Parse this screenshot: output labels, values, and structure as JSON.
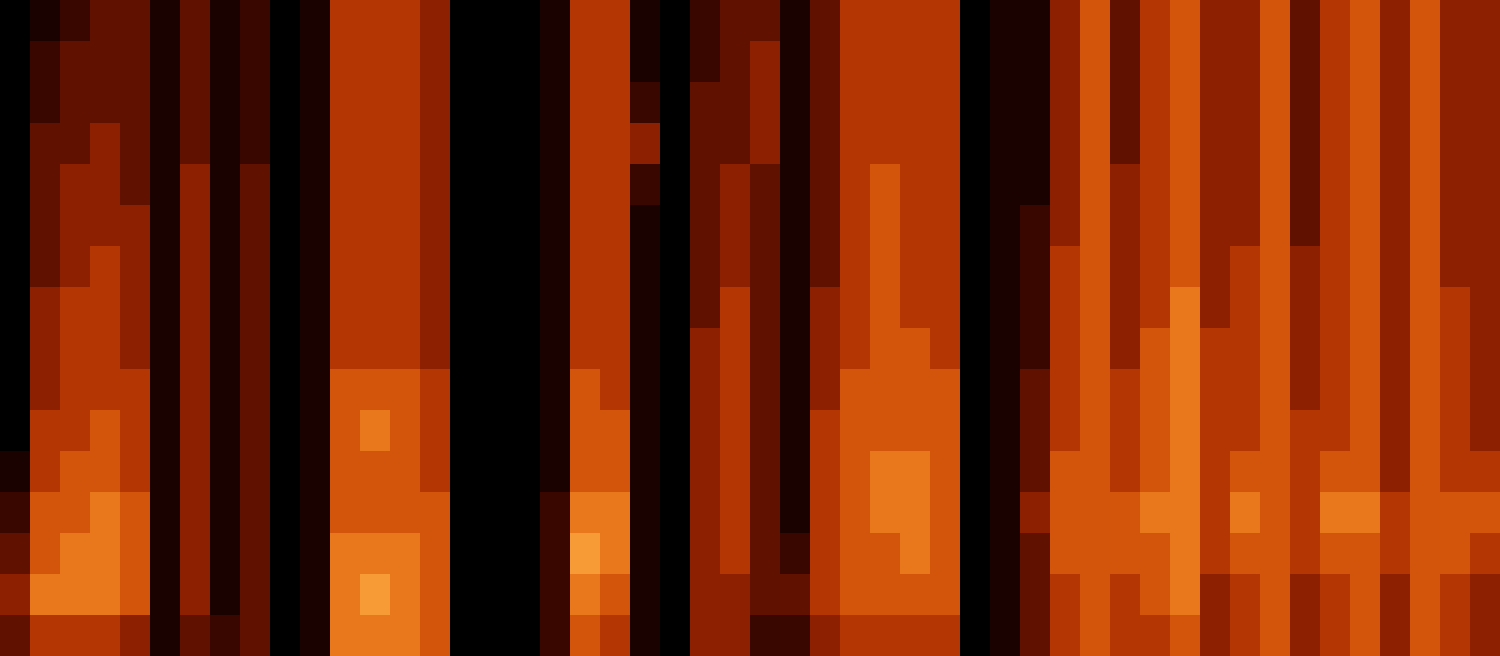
{
  "chart_data": {
    "type": "heatmap",
    "tick_labels": false,
    "zlim": [
      0,
      10
    ],
    "cells": [
      [
        0,
        0,
        0,
        0,
        0,
        0,
        0,
        0,
        0,
        0,
        0,
        1,
        2,
        3,
        4,
        3
      ],
      [
        1,
        2,
        2,
        3,
        3,
        3,
        3,
        4,
        4,
        4,
        5,
        5,
        6,
        6,
        7,
        5
      ],
      [
        2,
        3,
        3,
        3,
        4,
        4,
        4,
        5,
        5,
        5,
        5,
        6,
        6,
        7,
        7,
        5
      ],
      [
        3,
        3,
        3,
        4,
        4,
        4,
        5,
        5,
        5,
        5,
        6,
        6,
        7,
        7,
        7,
        5
      ],
      [
        3,
        3,
        3,
        3,
        3,
        4,
        4,
        4,
        4,
        5,
        5,
        5,
        6,
        6,
        6,
        4
      ],
      [
        1,
        1,
        1,
        1,
        1,
        1,
        1,
        1,
        1,
        1,
        1,
        1,
        1,
        1,
        1,
        1
      ],
      [
        3,
        3,
        3,
        3,
        4,
        4,
        4,
        4,
        4,
        4,
        4,
        4,
        4,
        4,
        4,
        3
      ],
      [
        1,
        1,
        1,
        1,
        1,
        1,
        1,
        1,
        1,
        1,
        1,
        1,
        1,
        1,
        1,
        2
      ],
      [
        2,
        2,
        2,
        2,
        3,
        3,
        3,
        3,
        3,
        3,
        3,
        3,
        3,
        3,
        3,
        3
      ],
      [
        0,
        0,
        0,
        0,
        0,
        0,
        0,
        0,
        0,
        0,
        0,
        0,
        0,
        0,
        0,
        0
      ],
      [
        1,
        1,
        1,
        1,
        1,
        1,
        1,
        1,
        1,
        1,
        1,
        1,
        1,
        1,
        1,
        1
      ],
      [
        5,
        5,
        5,
        5,
        5,
        5,
        5,
        5,
        5,
        6,
        6,
        6,
        6,
        7,
        7,
        7
      ],
      [
        5,
        5,
        5,
        5,
        5,
        5,
        5,
        5,
        5,
        6,
        7,
        6,
        6,
        7,
        8,
        7
      ],
      [
        5,
        5,
        5,
        5,
        5,
        5,
        5,
        5,
        5,
        6,
        6,
        6,
        6,
        7,
        7,
        7
      ],
      [
        4,
        4,
        4,
        4,
        4,
        4,
        4,
        4,
        4,
        5,
        5,
        5,
        6,
        6,
        6,
        6
      ],
      [
        0,
        0,
        0,
        0,
        0,
        0,
        0,
        0,
        0,
        0,
        0,
        0,
        0,
        0,
        0,
        0
      ],
      [
        0,
        0,
        0,
        0,
        0,
        0,
        0,
        0,
        0,
        0,
        0,
        0,
        0,
        0,
        0,
        0
      ],
      [
        0,
        0,
        0,
        0,
        0,
        0,
        0,
        0,
        0,
        0,
        0,
        0,
        0,
        0,
        0,
        0
      ],
      [
        1,
        1,
        1,
        1,
        1,
        1,
        1,
        1,
        1,
        1,
        1,
        1,
        2,
        2,
        2,
        2
      ],
      [
        5,
        5,
        5,
        5,
        5,
        5,
        5,
        5,
        5,
        6,
        6,
        6,
        7,
        8,
        7,
        6
      ],
      [
        5,
        5,
        5,
        5,
        5,
        5,
        5,
        5,
        5,
        5,
        6,
        6,
        7,
        7,
        6,
        5
      ],
      [
        1,
        1,
        2,
        4,
        2,
        1,
        1,
        1,
        1,
        1,
        1,
        1,
        1,
        1,
        1,
        1
      ],
      [
        0,
        0,
        0,
        0,
        0,
        0,
        0,
        0,
        0,
        0,
        0,
        0,
        0,
        0,
        0,
        0
      ],
      [
        2,
        2,
        3,
        3,
        3,
        3,
        3,
        3,
        4,
        4,
        4,
        4,
        4,
        4,
        4,
        4
      ],
      [
        3,
        3,
        3,
        3,
        4,
        4,
        4,
        5,
        5,
        5,
        5,
        5,
        5,
        5,
        4,
        4
      ],
      [
        3,
        4,
        4,
        4,
        3,
        3,
        3,
        3,
        3,
        3,
        3,
        3,
        3,
        3,
        3,
        2
      ],
      [
        1,
        1,
        1,
        1,
        1,
        1,
        1,
        1,
        1,
        1,
        1,
        1,
        1,
        2,
        3,
        2
      ],
      [
        3,
        3,
        3,
        3,
        3,
        3,
        3,
        4,
        4,
        4,
        5,
        5,
        5,
        5,
        5,
        4
      ],
      [
        5,
        5,
        5,
        5,
        5,
        5,
        5,
        5,
        5,
        6,
        6,
        6,
        6,
        6,
        6,
        5
      ],
      [
        5,
        5,
        5,
        5,
        6,
        6,
        6,
        6,
        6,
        6,
        6,
        7,
        7,
        6,
        6,
        5
      ],
      [
        5,
        5,
        5,
        5,
        5,
        5,
        5,
        5,
        6,
        6,
        6,
        7,
        7,
        7,
        6,
        5
      ],
      [
        5,
        5,
        5,
        5,
        5,
        5,
        5,
        5,
        5,
        6,
        6,
        6,
        6,
        6,
        6,
        5
      ],
      [
        0,
        0,
        0,
        0,
        0,
        0,
        0,
        0,
        0,
        0,
        0,
        0,
        0,
        0,
        0,
        0
      ],
      [
        1,
        1,
        1,
        1,
        1,
        1,
        1,
        1,
        1,
        1,
        1,
        1,
        1,
        1,
        1,
        1
      ],
      [
        1,
        1,
        1,
        1,
        1,
        2,
        2,
        2,
        2,
        3,
        3,
        3,
        4,
        3,
        3,
        3
      ],
      [
        4,
        4,
        4,
        4,
        4,
        4,
        5,
        5,
        5,
        5,
        5,
        6,
        6,
        6,
        5,
        5
      ],
      [
        6,
        6,
        6,
        6,
        6,
        6,
        6,
        6,
        6,
        6,
        6,
        6,
        6,
        6,
        6,
        6
      ],
      [
        3,
        3,
        3,
        3,
        4,
        4,
        4,
        4,
        4,
        5,
        5,
        5,
        6,
        6,
        5,
        5
      ],
      [
        5,
        5,
        5,
        5,
        5,
        5,
        5,
        5,
        6,
        6,
        6,
        6,
        7,
        6,
        6,
        5
      ],
      [
        6,
        6,
        6,
        6,
        6,
        6,
        6,
        7,
        7,
        7,
        7,
        7,
        7,
        7,
        7,
        6
      ],
      [
        4,
        4,
        4,
        4,
        4,
        4,
        4,
        4,
        5,
        5,
        5,
        5,
        5,
        5,
        4,
        4
      ],
      [
        4,
        4,
        4,
        4,
        4,
        4,
        5,
        5,
        5,
        5,
        5,
        6,
        7,
        6,
        5,
        5
      ],
      [
        6,
        6,
        6,
        6,
        6,
        6,
        6,
        6,
        6,
        6,
        6,
        6,
        6,
        6,
        6,
        6
      ],
      [
        3,
        3,
        3,
        3,
        3,
        3,
        4,
        4,
        4,
        4,
        5,
        5,
        5,
        5,
        4,
        4
      ],
      [
        5,
        5,
        5,
        5,
        5,
        5,
        5,
        5,
        5,
        5,
        5,
        6,
        7,
        6,
        5,
        5
      ],
      [
        6,
        6,
        6,
        6,
        6,
        6,
        6,
        6,
        6,
        6,
        6,
        6,
        7,
        6,
        6,
        6
      ],
      [
        4,
        4,
        4,
        4,
        4,
        4,
        4,
        4,
        4,
        4,
        4,
        4,
        5,
        5,
        4,
        4
      ],
      [
        6,
        6,
        6,
        6,
        6,
        6,
        6,
        6,
        6,
        6,
        6,
        6,
        6,
        6,
        6,
        6
      ],
      [
        4,
        4,
        4,
        4,
        4,
        4,
        4,
        5,
        5,
        5,
        5,
        5,
        6,
        6,
        5,
        5
      ],
      [
        4,
        4,
        4,
        4,
        4,
        4,
        4,
        4,
        4,
        4,
        4,
        5,
        6,
        5,
        4,
        4
      ]
    ]
  }
}
